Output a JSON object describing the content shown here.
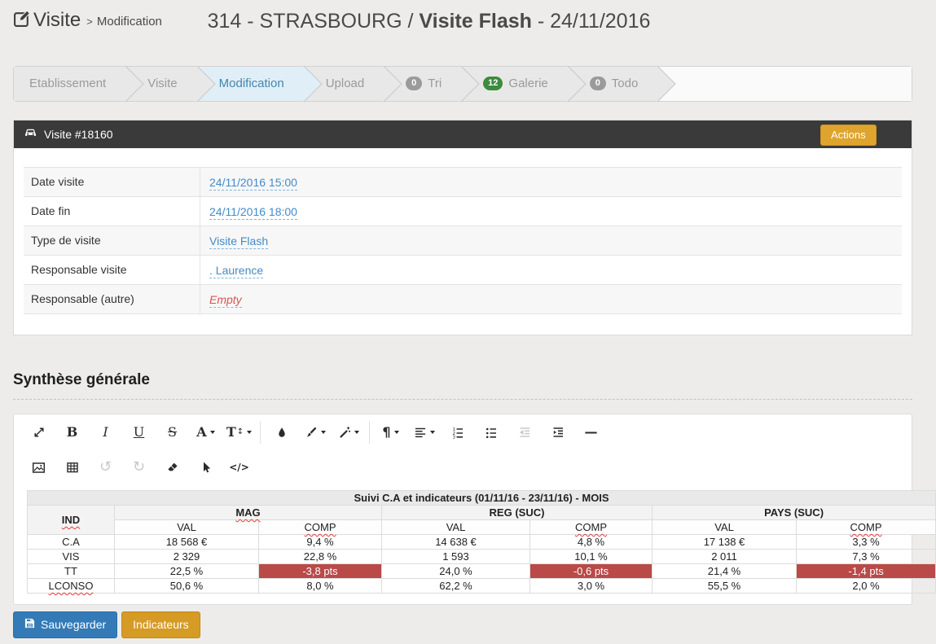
{
  "header": {
    "breadcrumb": {
      "app": "Visite",
      "separator": ">",
      "page": "Modification"
    },
    "title": {
      "prefix": "314 - STRASBOURG / ",
      "bold": "Visite Flash",
      "suffix": " - 24/11/2016"
    }
  },
  "wizard": {
    "tabs": [
      {
        "label": "Etablissement",
        "active": false
      },
      {
        "label": "Visite",
        "active": false
      },
      {
        "label": "Modification",
        "active": true
      },
      {
        "label": "Upload",
        "active": false
      },
      {
        "label": "Tri",
        "active": false,
        "badge": "0",
        "badge_color": "#9b9b9b"
      },
      {
        "label": "Galerie",
        "active": false,
        "badge": "12",
        "badge_color": "#3d8b3d"
      },
      {
        "label": "Todo",
        "active": false,
        "badge": "0",
        "badge_color": "#9b9b9b"
      }
    ]
  },
  "visit_panel": {
    "title": "Visite #18160",
    "actions_label": "Actions",
    "fields": [
      {
        "label": "Date visite",
        "value": "24/11/2016 15:00",
        "style": "link"
      },
      {
        "label": "Date fin",
        "value": "24/11/2016 18:00",
        "style": "link"
      },
      {
        "label": "Type de visite",
        "value": "Visite Flash",
        "style": "link"
      },
      {
        "label": "Responsable visite",
        "value": ". Laurence",
        "style": "link"
      },
      {
        "label": "Responsable (autre)",
        "value": "Empty",
        "style": "empty"
      }
    ]
  },
  "synthese": {
    "heading": "Synthèse générale",
    "toolbar": {
      "row1": [
        {
          "icon": "fullscreen"
        },
        {
          "icon": "bold"
        },
        {
          "icon": "italic"
        },
        {
          "icon": "underline"
        },
        {
          "icon": "strikethrough"
        },
        {
          "icon": "font-format",
          "caret": true
        },
        {
          "icon": "text-size",
          "caret": true
        },
        {
          "sep": true
        },
        {
          "icon": "color-droplet"
        },
        {
          "icon": "brush",
          "caret": true
        },
        {
          "icon": "magic-wand",
          "caret": true
        },
        {
          "sep": true
        },
        {
          "icon": "paragraph-format",
          "caret": true
        },
        {
          "icon": "align",
          "caret": true
        },
        {
          "icon": "ordered-list"
        },
        {
          "icon": "unordered-list"
        },
        {
          "icon": "outdent",
          "disabled": true
        },
        {
          "icon": "indent"
        },
        {
          "icon": "horizontal-rule"
        }
      ],
      "row2": [
        {
          "icon": "image"
        },
        {
          "icon": "table"
        },
        {
          "icon": "undo",
          "disabled": true
        },
        {
          "icon": "redo",
          "disabled": true
        },
        {
          "icon": "eraser"
        },
        {
          "icon": "cursor"
        },
        {
          "icon": "code-view"
        }
      ]
    },
    "table": {
      "caption": "Suivi C.A et indicateurs (01/11/16 - 23/11/16) - MOIS",
      "ind_header": "IND",
      "groups": [
        "MAG",
        "REG (SUC)",
        "PAYS (SUC)"
      ],
      "subheaders": [
        "VAL",
        "COMP"
      ],
      "rows": [
        {
          "ind": "C.A",
          "cells": [
            {
              "v": "18 568 €"
            },
            {
              "v": "9,4 %"
            },
            {
              "v": "14 638 €"
            },
            {
              "v": "4,8 %"
            },
            {
              "v": "17 138 €"
            },
            {
              "v": "3,3 %"
            }
          ]
        },
        {
          "ind": "VIS",
          "cells": [
            {
              "v": "2 329"
            },
            {
              "v": "22,8 %"
            },
            {
              "v": "1 593"
            },
            {
              "v": "10,1 %"
            },
            {
              "v": "2 011"
            },
            {
              "v": "7,3 %"
            }
          ]
        },
        {
          "ind": "TT",
          "cells": [
            {
              "v": "22,5 %"
            },
            {
              "v": "-3,8 pts",
              "danger": true
            },
            {
              "v": "24,0 %"
            },
            {
              "v": "-0,6 pts",
              "danger": true
            },
            {
              "v": "21,4 %"
            },
            {
              "v": "-1,4 pts",
              "danger": true
            }
          ]
        },
        {
          "ind": "LCONSO",
          "cells": [
            {
              "v": "50,6 %"
            },
            {
              "v": "8,0 %"
            },
            {
              "v": "62,2 %"
            },
            {
              "v": "3,0 %"
            },
            {
              "v": "55,5 %"
            },
            {
              "v": "2,0 %"
            }
          ]
        }
      ]
    }
  },
  "footer": {
    "save_label": "Sauvegarder",
    "indicators_label": "Indicateurs"
  },
  "colors": {
    "accent_blue": "#337ab7",
    "accent_gold": "#dfa42d",
    "danger_cell": "#b94a48",
    "link_blue": "#428bca",
    "dark_header": "#3a3a3a",
    "active_tab_bg": "#e0eef8"
  }
}
